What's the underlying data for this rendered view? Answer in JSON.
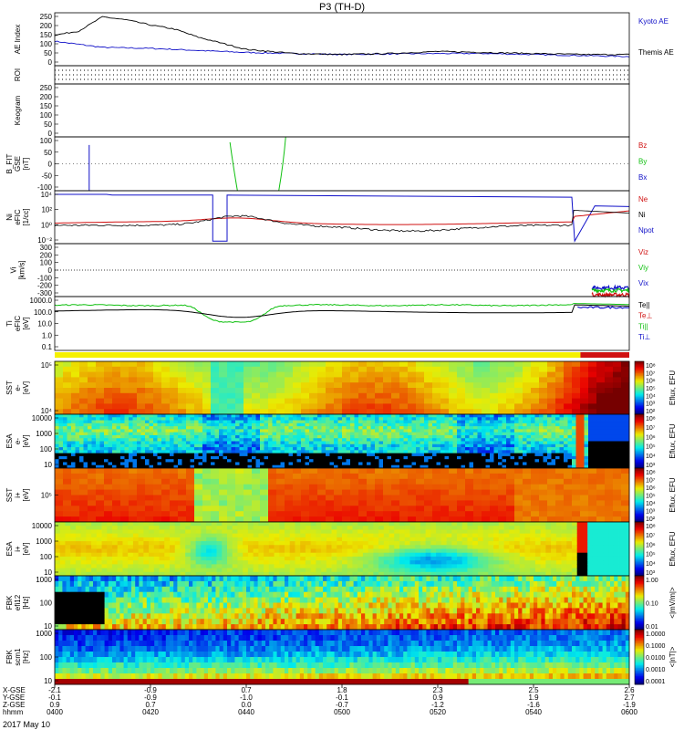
{
  "title": "P3 (TH-D)",
  "date_label": "2017 May 10",
  "colors": {
    "kyoto": "#1010c8",
    "themis": "#000000",
    "red": "#d01010",
    "green": "#10c010",
    "blue": "#1010c8",
    "black": "#000000"
  },
  "panels": [
    {
      "id": "ae",
      "ylabel": [
        "AE Index"
      ],
      "ticks": [
        "250",
        "200",
        "150",
        "100",
        "50",
        "0"
      ],
      "legend": [
        {
          "text": "Kyoto AE",
          "color": "#1010c8"
        },
        {
          "text": "Themis AE",
          "color": "#000000"
        }
      ]
    },
    {
      "id": "roi",
      "ylabel": [
        "ROI"
      ],
      "ticks": [],
      "legend": []
    },
    {
      "id": "keogram",
      "ylabel": [
        "Keogram"
      ],
      "ticks": [
        "250",
        "200",
        "150",
        "100",
        "50",
        "0"
      ],
      "legend": []
    },
    {
      "id": "bfit",
      "ylabel": [
        "B_FIT",
        "GSE",
        "[nT]"
      ],
      "ticks": [
        "100",
        "50",
        "0",
        "-50",
        "-100"
      ],
      "legend": [
        {
          "text": "Bz",
          "color": "#d01010"
        },
        {
          "text": "By",
          "color": "#10c010"
        },
        {
          "text": "Bx",
          "color": "#1010c8"
        }
      ]
    },
    {
      "id": "ni",
      "ylabel": [
        "Ni",
        "eFIC",
        "[1/cc]"
      ],
      "ticks": [
        "10⁴",
        "10²",
        "10⁰",
        "10⁻²"
      ],
      "legend": [
        {
          "text": "Ne",
          "color": "#d01010"
        },
        {
          "text": "Ni",
          "color": "#000000"
        },
        {
          "text": "Npot",
          "color": "#1010c8"
        }
      ]
    },
    {
      "id": "vi",
      "ylabel": [
        "Vi",
        "[km/s]"
      ],
      "ticks": [
        "300",
        "200",
        "100",
        "0",
        "-100",
        "-200",
        "-300"
      ],
      "legend": [
        {
          "text": "Viz",
          "color": "#d01010"
        },
        {
          "text": "Viy",
          "color": "#10c010"
        },
        {
          "text": "Vix",
          "color": "#1010c8"
        }
      ]
    },
    {
      "id": "ti",
      "ylabel": [
        "Ti",
        "eFIC",
        "[eV]"
      ],
      "ticks": [
        "1000.0",
        "100.0",
        "10.0",
        "1.0",
        "0.1"
      ],
      "legend": [
        {
          "text": "Te||",
          "color": "#000000"
        },
        {
          "text": "Te⊥",
          "color": "#d01010"
        },
        {
          "text": "Ti||",
          "color": "#10c010"
        },
        {
          "text": "Ti⊥",
          "color": "#1010c8"
        }
      ]
    },
    {
      "id": "sst_e",
      "ylabel": [
        "SST",
        "e-",
        "[eV]"
      ],
      "ticks": [
        "10⁵",
        "10⁴"
      ],
      "legend": []
    },
    {
      "id": "esa_e",
      "ylabel": [
        "ESA",
        "e-",
        "[eV]"
      ],
      "ticks": [
        "10000",
        "1000",
        "100",
        "10"
      ],
      "legend": []
    },
    {
      "id": "sst_i",
      "ylabel": [
        "SST",
        "i+",
        "[eV]"
      ],
      "ticks": [
        "10⁵"
      ],
      "legend": []
    },
    {
      "id": "esa_i",
      "ylabel": [
        "ESA",
        "i+",
        "[eV]"
      ],
      "ticks": [
        "10000",
        "1000",
        "100",
        "10"
      ],
      "legend": []
    },
    {
      "id": "fbk_e",
      "ylabel": [
        "FBK",
        "efi12",
        "[Hz]"
      ],
      "ticks": [
        "1000",
        "100",
        "10"
      ],
      "legend": []
    },
    {
      "id": "fbk_b",
      "ylabel": [
        "FBK",
        "scm1",
        "[Hz]"
      ],
      "ticks": [
        "1000",
        "100",
        "10"
      ],
      "legend": []
    }
  ],
  "colorbars": [
    {
      "id": "cb_sst_e",
      "ticks": [
        "10⁸",
        "10⁷",
        "10⁶",
        "10⁵",
        "10⁴",
        "10³",
        "10²"
      ],
      "label": "Eflux, EFU"
    },
    {
      "id": "cb_esa_e",
      "ticks": [
        "10⁸",
        "10⁷",
        "10⁶",
        "10⁵",
        "10⁴",
        "10³"
      ],
      "label": "Eflux, EFU"
    },
    {
      "id": "cb_sst_i",
      "ticks": [
        "10⁸",
        "10⁷",
        "10⁶",
        "10⁵",
        "10⁴",
        "10³",
        "10²"
      ],
      "label": "Eflux, EFU"
    },
    {
      "id": "cb_esa_i",
      "ticks": [
        "10⁸",
        "10⁷",
        "10⁶",
        "10⁵",
        "10⁴",
        "10³"
      ],
      "label": "Eflux, EFU"
    },
    {
      "id": "cb_fbk_e",
      "ticks": [
        "1.00",
        "0.10",
        "0.01"
      ],
      "label": "<|mV/m|>"
    },
    {
      "id": "cb_fbk_b",
      "ticks": [
        "1.0000",
        "0.1000",
        "0.0100",
        "0.0010",
        "0.0001"
      ],
      "label": "<|nT|>"
    }
  ],
  "ephemeris_labels": [
    "X-GSE",
    "Y-GSE",
    "Z-GSE",
    "hhmm"
  ],
  "ephemeris": [
    {
      "x": "-2.1",
      "y": "-0.1",
      "z": "0.9",
      "time": "0400"
    },
    {
      "x": "-0.9",
      "y": "-0.9",
      "z": "0.7",
      "time": "0420"
    },
    {
      "x": "0.7",
      "y": "-1.0",
      "z": "0.0",
      "time": "0440"
    },
    {
      "x": "1.8",
      "y": "-0.1",
      "z": "-0.7",
      "time": "0500"
    },
    {
      "x": "2.3",
      "y": "0.9",
      "z": "-1.2",
      "time": "0520"
    },
    {
      "x": "2.5",
      "y": "1.9",
      "z": "-1.6",
      "time": "0540"
    },
    {
      "x": "2.6",
      "y": "2.7",
      "z": "-1.9",
      "time": "0600"
    }
  ],
  "chart_data": {
    "type": "line",
    "title": "P3 (TH-D)",
    "x_unit": "hhmm, 2017 May 10",
    "xlim": [
      "0400",
      "0600"
    ],
    "series": [
      {
        "name": "Kyoto AE",
        "x_minutes": [
          0,
          5,
          10,
          20,
          30,
          40,
          50,
          60,
          70,
          80,
          90,
          100,
          110,
          120
        ],
        "values": [
          120,
          105,
          90,
          85,
          75,
          65,
          60,
          55,
          58,
          60,
          60,
          55,
          50,
          45
        ]
      },
      {
        "name": "Themis AE",
        "x_minutes": [
          0,
          5,
          10,
          15,
          20,
          25,
          30,
          40,
          50,
          60,
          70,
          80,
          90,
          100,
          110,
          120
        ],
        "values": [
          150,
          170,
          240,
          225,
          200,
          180,
          140,
          80,
          60,
          55,
          60,
          70,
          65,
          60,
          55,
          55
        ]
      }
    ]
  }
}
